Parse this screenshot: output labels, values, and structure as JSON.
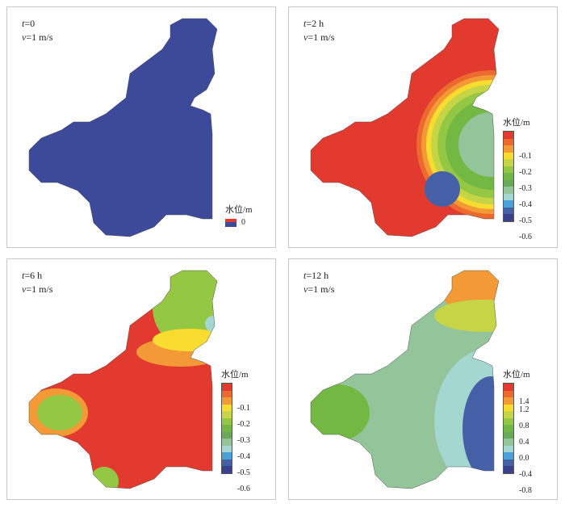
{
  "panels": [
    {
      "time_label": "t",
      "time_value": "=0",
      "velocity_label": "v",
      "velocity_value": "=1 m/s",
      "legend_title": "水位/m",
      "legend_ticks": [
        "0"
      ],
      "fill": "#3d4a9a"
    },
    {
      "time_label": "t",
      "time_value": "=2 h",
      "velocity_label": "v",
      "velocity_value": "=1 m/s",
      "legend_title": "水位/m",
      "legend_ticks": [
        "-0.1",
        "-0.2",
        "-0.3",
        "-0.4",
        "-0.5",
        "-0.6"
      ]
    },
    {
      "time_label": "t",
      "time_value": "=6 h",
      "velocity_label": "v",
      "velocity_value": "=1 m/s",
      "legend_title": "水位/m",
      "legend_ticks": [
        "-0.1",
        "-0.2",
        "-0.3",
        "-0.4",
        "-0.5",
        "-0.6"
      ]
    },
    {
      "time_label": "t",
      "time_value": "=12 h",
      "velocity_label": "v",
      "velocity_value": "=1 m/s",
      "legend_title": "水位/m",
      "legend_ticks": [
        "1.4",
        "1.2",
        "0.8",
        "0.4",
        "0.0",
        "-0.4",
        "-0.8"
      ]
    }
  ],
  "colorscale": [
    "#e23a2e",
    "#ec6a2e",
    "#f39a36",
    "#f8dc2f",
    "#c5d545",
    "#94c744",
    "#72b843",
    "#6aa85a",
    "#93c49a",
    "#a3d7d0",
    "#4aa0d8",
    "#4660a8",
    "#3a3f8e"
  ]
}
